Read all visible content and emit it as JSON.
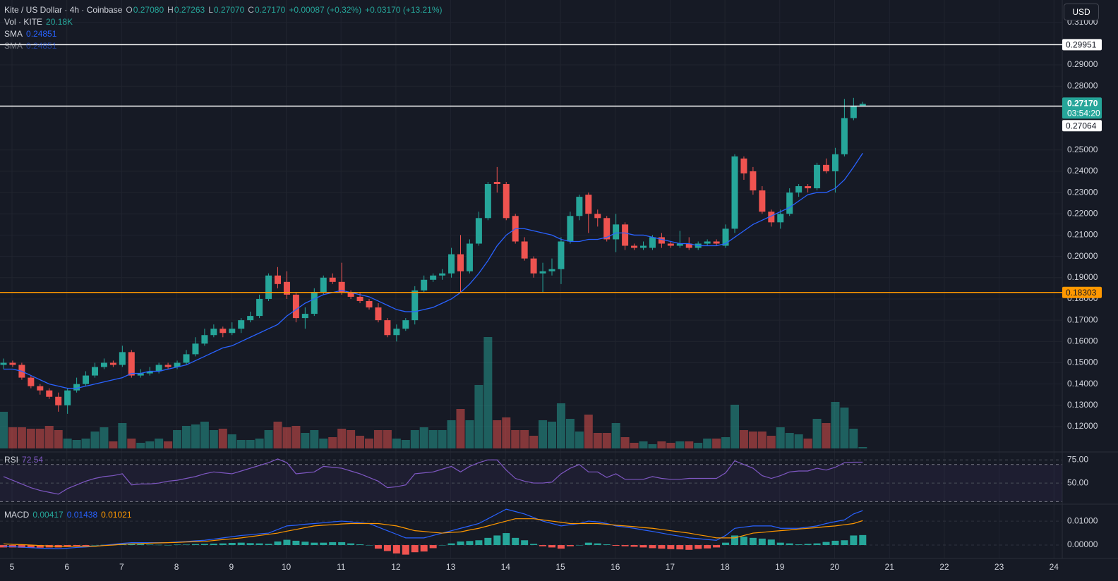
{
  "chart_data": {
    "type": "candlestick",
    "title": "Kite / US Dollar · 4h · Coinbase",
    "currency": "USD",
    "legend": {
      "o_label": "O",
      "open": "0.27080",
      "h_label": "H",
      "high": "0.27263",
      "l_label": "L",
      "low": "0.27070",
      "c_label": "C",
      "close": "0.27170",
      "change": "+0.00087 (+0.32%)",
      "change_total": "+0.03170 (+13.21%)"
    },
    "up_color": "#26a69a",
    "down_color": "#ef5350",
    "open": [
      0.149,
      0.15,
      0.149,
      0.143,
      0.139,
      0.137,
      0.134,
      0.13,
      0.137,
      0.14,
      0.144,
      0.148,
      0.15,
      0.149,
      0.155,
      0.144,
      0.145,
      0.146,
      0.149,
      0.148,
      0.15,
      0.154,
      0.159,
      0.163,
      0.166,
      0.164,
      0.166,
      0.17,
      0.172,
      0.18,
      0.191,
      0.188,
      0.182,
      0.171,
      0.173,
      0.183,
      0.19,
      0.188,
      0.183,
      0.181,
      0.179,
      0.176,
      0.17,
      0.163,
      0.166,
      0.17,
      0.184,
      0.189,
      0.191,
      0.192,
      0.201,
      0.193,
      0.206,
      0.218,
      0.235,
      0.234,
      0.219,
      0.207,
      0.199,
      0.192,
      0.193,
      0.194,
      0.207,
      0.219,
      0.229,
      0.22,
      0.218,
      0.208,
      0.215,
      0.205,
      0.204,
      0.204,
      0.209,
      0.206,
      0.205,
      0.206,
      0.204,
      0.206,
      0.207,
      0.205,
      0.213,
      0.246,
      0.24,
      0.231,
      0.221,
      0.216,
      0.22,
      0.23,
      0.233,
      0.232,
      0.243,
      0.24,
      0.248,
      0.265,
      0.2708
    ],
    "high": [
      0.152,
      0.151,
      0.15,
      0.144,
      0.14,
      0.138,
      0.136,
      0.138,
      0.143,
      0.146,
      0.15,
      0.152,
      0.151,
      0.158,
      0.156,
      0.147,
      0.148,
      0.15,
      0.15,
      0.151,
      0.156,
      0.162,
      0.166,
      0.168,
      0.167,
      0.169,
      0.171,
      0.174,
      0.182,
      0.192,
      0.195,
      0.193,
      0.183,
      0.176,
      0.185,
      0.191,
      0.192,
      0.197,
      0.184,
      0.183,
      0.18,
      0.178,
      0.171,
      0.168,
      0.171,
      0.186,
      0.191,
      0.192,
      0.194,
      0.204,
      0.21,
      0.208,
      0.221,
      0.235,
      0.242,
      0.235,
      0.22,
      0.209,
      0.2,
      0.197,
      0.199,
      0.209,
      0.221,
      0.229,
      0.23,
      0.222,
      0.219,
      0.22,
      0.216,
      0.206,
      0.207,
      0.21,
      0.211,
      0.207,
      0.212,
      0.209,
      0.207,
      0.208,
      0.208,
      0.215,
      0.248,
      0.247,
      0.242,
      0.233,
      0.222,
      0.222,
      0.232,
      0.234,
      0.234,
      0.244,
      0.246,
      0.251,
      0.274,
      0.2745,
      0.27263
    ],
    "low": [
      0.147,
      0.148,
      0.142,
      0.138,
      0.135,
      0.133,
      0.127,
      0.126,
      0.136,
      0.139,
      0.143,
      0.147,
      0.148,
      0.148,
      0.143,
      0.143,
      0.144,
      0.145,
      0.147,
      0.147,
      0.149,
      0.153,
      0.158,
      0.162,
      0.162,
      0.163,
      0.164,
      0.169,
      0.171,
      0.179,
      0.185,
      0.18,
      0.169,
      0.166,
      0.172,
      0.182,
      0.187,
      0.182,
      0.18,
      0.178,
      0.175,
      0.169,
      0.162,
      0.16,
      0.165,
      0.168,
      0.183,
      0.188,
      0.189,
      0.19,
      0.183,
      0.192,
      0.205,
      0.217,
      0.23,
      0.217,
      0.206,
      0.198,
      0.19,
      0.183,
      0.191,
      0.187,
      0.206,
      0.217,
      0.211,
      0.214,
      0.207,
      0.202,
      0.203,
      0.203,
      0.203,
      0.203,
      0.204,
      0.204,
      0.204,
      0.203,
      0.203,
      0.205,
      0.205,
      0.204,
      0.211,
      0.236,
      0.229,
      0.22,
      0.214,
      0.213,
      0.219,
      0.228,
      0.23,
      0.231,
      0.239,
      0.23,
      0.247,
      0.264,
      0.2707
    ],
    "close": [
      0.15,
      0.149,
      0.143,
      0.139,
      0.137,
      0.134,
      0.13,
      0.137,
      0.14,
      0.144,
      0.148,
      0.15,
      0.149,
      0.155,
      0.144,
      0.145,
      0.146,
      0.149,
      0.148,
      0.15,
      0.154,
      0.159,
      0.163,
      0.166,
      0.164,
      0.166,
      0.17,
      0.172,
      0.18,
      0.191,
      0.187,
      0.182,
      0.171,
      0.173,
      0.183,
      0.19,
      0.188,
      0.183,
      0.181,
      0.179,
      0.176,
      0.17,
      0.163,
      0.166,
      0.17,
      0.184,
      0.189,
      0.191,
      0.192,
      0.201,
      0.193,
      0.206,
      0.218,
      0.234,
      0.234,
      0.218,
      0.207,
      0.199,
      0.192,
      0.193,
      0.194,
      0.207,
      0.219,
      0.228,
      0.22,
      0.218,
      0.208,
      0.215,
      0.205,
      0.204,
      0.205,
      0.209,
      0.206,
      0.205,
      0.206,
      0.204,
      0.206,
      0.207,
      0.206,
      0.213,
      0.247,
      0.239,
      0.231,
      0.221,
      0.216,
      0.22,
      0.23,
      0.233,
      0.232,
      0.243,
      0.24,
      0.248,
      0.265,
      0.2708,
      0.2717
    ],
    "ylim": [
      0.1084,
      0.3205
    ],
    "yticks": [
      {
        "value": 0.12,
        "label": "0.12000"
      },
      {
        "value": 0.13,
        "label": "0.13000"
      },
      {
        "value": 0.14,
        "label": "0.14000"
      },
      {
        "value": 0.15,
        "label": "0.15000"
      },
      {
        "value": 0.16,
        "label": "0.16000"
      },
      {
        "value": 0.17,
        "label": "0.17000"
      },
      {
        "value": 0.18,
        "label": "0.18000"
      },
      {
        "value": 0.19,
        "label": "0.19000"
      },
      {
        "value": 0.2,
        "label": "0.20000"
      },
      {
        "value": 0.21,
        "label": "0.21000"
      },
      {
        "value": 0.22,
        "label": "0.22000"
      },
      {
        "value": 0.23,
        "label": "0.23000"
      },
      {
        "value": 0.24,
        "label": "0.24000"
      },
      {
        "value": 0.25,
        "label": "0.25000"
      },
      {
        "value": 0.28,
        "label": "0.28000"
      },
      {
        "value": 0.29,
        "label": "0.29000"
      },
      {
        "value": 0.31,
        "label": "0.31000"
      }
    ],
    "xticks": [
      5,
      6,
      7,
      8,
      9,
      10,
      11,
      12,
      13,
      14,
      15,
      16,
      17,
      18,
      19,
      20,
      21,
      22,
      23,
      24
    ],
    "grid": true,
    "price_lines": [
      {
        "value": 0.29951,
        "color": "#ffffff"
      },
      {
        "value": 0.27064,
        "color": "#ffffff"
      },
      {
        "value": 0.18303,
        "color": "#ff9800"
      }
    ],
    "last_price": {
      "value": 0.2717,
      "label": "0.27170",
      "countdown": "03:54:20"
    },
    "volume": {
      "name": "Vol · KITE",
      "value_label": "20.18K",
      "values": [
        520,
        300,
        300,
        280,
        280,
        320,
        260,
        140,
        120,
        140,
        240,
        300,
        100,
        360,
        140,
        80,
        100,
        140,
        100,
        260,
        320,
        340,
        380,
        260,
        280,
        200,
        120,
        120,
        140,
        260,
        380,
        300,
        320,
        220,
        260,
        140,
        160,
        280,
        260,
        180,
        140,
        260,
        260,
        140,
        120,
        260,
        300,
        260,
        260,
        400,
        560,
        400,
        900,
        1580,
        400,
        440,
        260,
        260,
        180,
        400,
        380,
        640,
        420,
        240,
        480,
        220,
        220,
        360,
        160,
        80,
        100,
        60,
        100,
        80,
        100,
        100,
        80,
        140,
        140,
        160,
        620,
        260,
        240,
        240,
        180,
        300,
        220,
        200,
        140,
        420,
        360,
        660,
        580,
        280,
        20.18
      ]
    },
    "sma": {
      "name": "SMA",
      "value_label": "0.24851",
      "color": "#2962ff",
      "values": [
        0.147,
        0.147,
        0.146,
        0.144,
        0.142,
        0.14,
        0.139,
        0.138,
        0.138,
        0.139,
        0.14,
        0.141,
        0.142,
        0.143,
        0.145,
        0.145,
        0.146,
        0.146,
        0.147,
        0.148,
        0.149,
        0.151,
        0.153,
        0.155,
        0.157,
        0.158,
        0.16,
        0.162,
        0.164,
        0.166,
        0.168,
        0.172,
        0.175,
        0.178,
        0.18,
        0.182,
        0.183,
        0.184,
        0.183,
        0.182,
        0.181,
        0.179,
        0.177,
        0.175,
        0.174,
        0.174,
        0.175,
        0.176,
        0.178,
        0.18,
        0.183,
        0.187,
        0.192,
        0.198,
        0.205,
        0.21,
        0.213,
        0.213,
        0.212,
        0.211,
        0.21,
        0.208,
        0.207,
        0.207,
        0.208,
        0.208,
        0.209,
        0.211,
        0.211,
        0.21,
        0.21,
        0.209,
        0.208,
        0.207,
        0.206,
        0.206,
        0.205,
        0.205,
        0.205,
        0.206,
        0.209,
        0.212,
        0.215,
        0.217,
        0.219,
        0.221,
        0.223,
        0.226,
        0.229,
        0.23,
        0.23,
        0.232,
        0.236,
        0.242,
        0.24851
      ]
    },
    "sma_2": {
      "name": "SMA",
      "value_label": "0.24851"
    },
    "rsi": {
      "name": "RSI",
      "value_label": "72.54",
      "color": "#7e57c2",
      "band": [
        30,
        70
      ],
      "ylim": [
        28,
        80.5
      ],
      "yticks": [
        {
          "value": 75,
          "label": "75.00"
        },
        {
          "value": 50,
          "label": "50.00"
        }
      ],
      "values": [
        57,
        53,
        49,
        45,
        42,
        40,
        38,
        44,
        48,
        52,
        55,
        57,
        58,
        60,
        48,
        49,
        49,
        50,
        52,
        53,
        55,
        57,
        60,
        62,
        61,
        60,
        63,
        66,
        69,
        72,
        76,
        72,
        60,
        61,
        62,
        68,
        67,
        66,
        63,
        60,
        56,
        52,
        45,
        46,
        48,
        60,
        61,
        62,
        65,
        68,
        62,
        68,
        72,
        75,
        75,
        64,
        55,
        52,
        50,
        50,
        51,
        60,
        66,
        70,
        62,
        62,
        56,
        60,
        54,
        54,
        54,
        57,
        55,
        54,
        54,
        55,
        55,
        55,
        55,
        61,
        74,
        70,
        66,
        58,
        55,
        58,
        62,
        63,
        63,
        66,
        64,
        67,
        72,
        72.5,
        72.54
      ]
    },
    "macd": {
      "name": "MACD",
      "ylim": [
        -0.005,
        0.0168
      ],
      "yticks": [
        {
          "value": 0.01,
          "label": "0.01000"
        },
        {
          "value": 0,
          "label": "0.00000"
        }
      ],
      "histogram": {
        "value_label": "0.00417",
        "values": [
          -0.001,
          -0.001,
          -0.0011,
          -0.0011,
          -0.0011,
          -0.001,
          -0.001,
          -0.0008,
          -0.0005,
          -0.0003,
          0,
          0.0001,
          0.0003,
          0.0004,
          0.0005,
          0.0004,
          0.0002,
          0.0001,
          0,
          0.0002,
          0.0002,
          0.0004,
          0.0005,
          0.0006,
          0.0007,
          0.0009,
          0.001,
          0.0008,
          0.0007,
          0.0005,
          0.0015,
          0.0022,
          0.0018,
          0.0014,
          0.001,
          0.001,
          0.0012,
          0.0012,
          0.0007,
          0.0003,
          0,
          -0.0015,
          -0.0025,
          -0.0035,
          -0.004,
          -0.003,
          -0.0027,
          -0.0013,
          0,
          0.0007,
          0.0015,
          0.0017,
          0.002,
          0.003,
          0.004,
          0.005,
          0.003,
          0.002,
          0.0005,
          -0.0005,
          -0.001,
          -0.0015,
          -0.0005,
          0,
          0.001,
          0.0007,
          0.0003,
          -0.0003,
          -0.0005,
          -0.0007,
          -0.001,
          -0.0013,
          -0.0015,
          -0.0017,
          -0.0018,
          -0.002,
          -0.0016,
          -0.0014,
          -0.001,
          0.001,
          0.004,
          0.0035,
          0.003,
          0.0027,
          0.0023,
          0.001,
          0.0007,
          0.0003,
          0.0005,
          0.0007,
          0.0013,
          0.0018,
          0.002,
          0.004,
          0.00417
        ]
      },
      "line": {
        "value_label": "0.01438",
        "color": "#2962ff",
        "values": [
          -0.0005,
          -0.0007,
          -0.0009,
          -0.0011,
          -0.0013,
          -0.0014,
          -0.0015,
          -0.0013,
          -0.001,
          -0.0008,
          -0.0005,
          -0.0001,
          0.0003,
          0.0007,
          0.001,
          0.001,
          0.001,
          0.001,
          0.001,
          0.0013,
          0.0015,
          0.0018,
          0.002,
          0.0025,
          0.003,
          0.0035,
          0.004,
          0.0043,
          0.0047,
          0.005,
          0.0065,
          0.008,
          0.0083,
          0.0087,
          0.009,
          0.0093,
          0.0097,
          0.01,
          0.0097,
          0.0093,
          0.009,
          0.0075,
          0.006,
          0.0045,
          0.003,
          0.003,
          0.003,
          0.004,
          0.005,
          0.006,
          0.007,
          0.008,
          0.009,
          0.011,
          0.013,
          0.015,
          0.014,
          0.013,
          0.0115,
          0.01,
          0.009,
          0.008,
          0.0085,
          0.009,
          0.01,
          0.0097,
          0.009,
          0.008,
          0.0075,
          0.007,
          0.0063,
          0.0057,
          0.005,
          0.0043,
          0.0037,
          0.003,
          0.0027,
          0.0023,
          0.002,
          0.004,
          0.007,
          0.0075,
          0.008,
          0.008,
          0.008,
          0.007,
          0.007,
          0.007,
          0.0075,
          0.008,
          0.009,
          0.0098,
          0.0105,
          0.013,
          0.01438
        ]
      },
      "signal": {
        "value_label": "0.01021",
        "color": "#ff9800",
        "values": [
          0.0005,
          0.0003,
          0.0002,
          0,
          -0.0002,
          -0.0004,
          -0.0005,
          -0.0005,
          -0.0005,
          -0.0005,
          -0.0005,
          -0.0002,
          0,
          0.0003,
          0.0005,
          0.0006,
          0.0008,
          0.0009,
          0.001,
          0.0011,
          0.0013,
          0.0014,
          0.0015,
          0.0019,
          0.0023,
          0.0026,
          0.003,
          0.0035,
          0.004,
          0.0045,
          0.005,
          0.0058,
          0.0065,
          0.0073,
          0.008,
          0.0083,
          0.0085,
          0.0088,
          0.009,
          0.009,
          0.009,
          0.009,
          0.0085,
          0.008,
          0.007,
          0.006,
          0.0057,
          0.0053,
          0.005,
          0.0053,
          0.0055,
          0.0063,
          0.007,
          0.008,
          0.009,
          0.01,
          0.011,
          0.011,
          0.011,
          0.0105,
          0.01,
          0.0095,
          0.009,
          0.009,
          0.009,
          0.009,
          0.0087,
          0.0083,
          0.008,
          0.0077,
          0.0073,
          0.007,
          0.0065,
          0.006,
          0.0055,
          0.005,
          0.0043,
          0.0037,
          0.003,
          0.003,
          0.003,
          0.004,
          0.005,
          0.0053,
          0.0057,
          0.006,
          0.0063,
          0.0067,
          0.007,
          0.0073,
          0.0077,
          0.008,
          0.0085,
          0.009,
          0.01021
        ]
      }
    }
  }
}
